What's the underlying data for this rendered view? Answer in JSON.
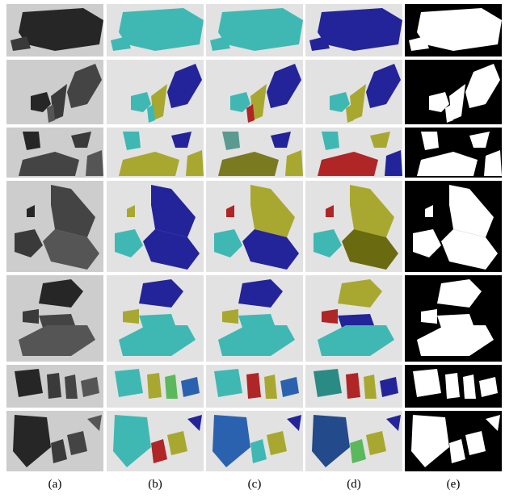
{
  "labels": [
    "(a)",
    "(b)",
    "(c)",
    "(d)",
    "(e)"
  ]
}
